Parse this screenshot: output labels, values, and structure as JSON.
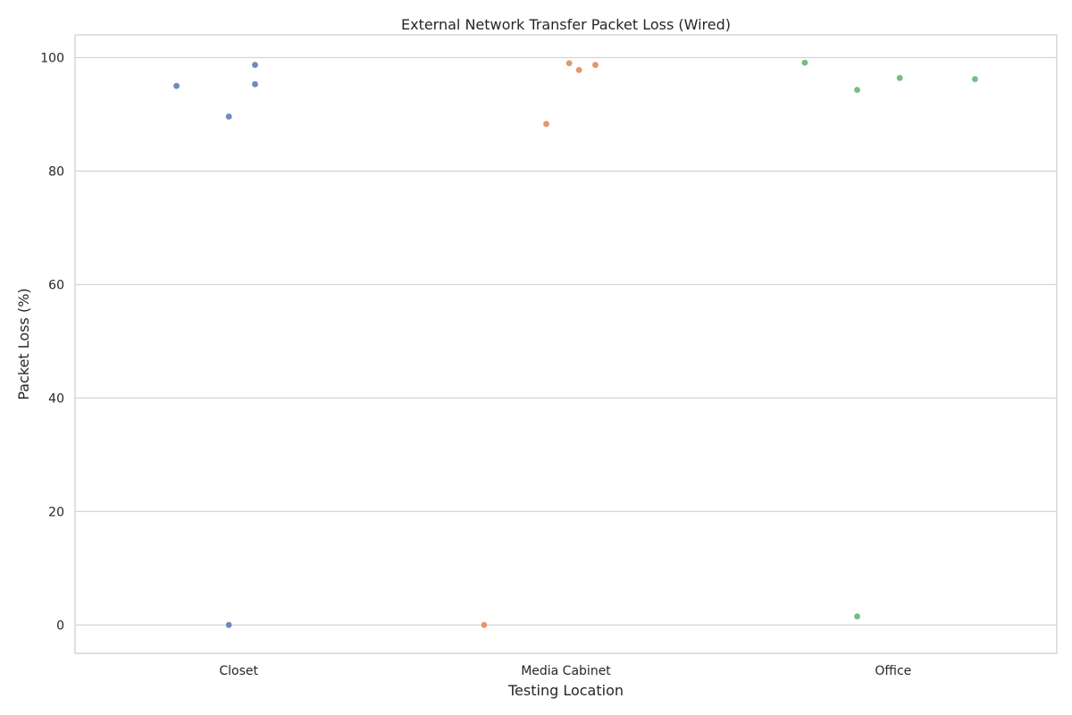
{
  "chart_data": {
    "type": "scatter",
    "title": "External Network Transfer Packet Loss (Wired)",
    "xlabel": "Testing Location",
    "ylabel": "Packet Loss (%)",
    "categories": [
      "Closet",
      "Media Cabinet",
      "Office"
    ],
    "ylim": [
      -5,
      104
    ],
    "yticks": [
      0,
      20,
      40,
      60,
      80,
      100
    ],
    "grid": true,
    "colors": [
      "#6e8bbf",
      "#e0996c",
      "#74bf80"
    ],
    "series": [
      {
        "category": "Closet",
        "points": [
          {
            "jitter": 0.05,
            "value": 98.7
          },
          {
            "jitter": 0.05,
            "value": 95.3
          },
          {
            "jitter": -0.19,
            "value": 95.0
          },
          {
            "jitter": -0.03,
            "value": 89.6
          },
          {
            "jitter": -0.03,
            "value": 0.0
          }
        ]
      },
      {
        "category": "Media Cabinet",
        "points": [
          {
            "jitter": 0.01,
            "value": 99.0
          },
          {
            "jitter": 0.09,
            "value": 98.7
          },
          {
            "jitter": 0.04,
            "value": 97.8
          },
          {
            "jitter": -0.06,
            "value": 88.3
          },
          {
            "jitter": -0.25,
            "value": 0.0
          }
        ]
      },
      {
        "category": "Office",
        "points": [
          {
            "jitter": -0.27,
            "value": 99.1
          },
          {
            "jitter": 0.02,
            "value": 96.4
          },
          {
            "jitter": 0.25,
            "value": 96.2
          },
          {
            "jitter": -0.11,
            "value": 94.3
          },
          {
            "jitter": -0.11,
            "value": 1.5
          }
        ]
      }
    ]
  }
}
